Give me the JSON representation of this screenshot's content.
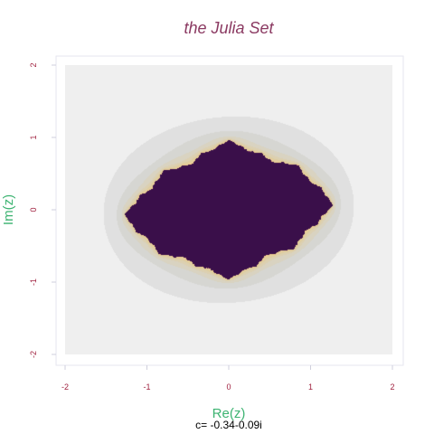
{
  "chart_data": {
    "type": "heatmap",
    "title": "the Julia Set",
    "xlabel": "Re(z)",
    "ylabel": "Im(z)",
    "caption": "c= -0.34-0.09i",
    "c": {
      "re": -0.34,
      "im": -0.09
    },
    "xlim": [
      -2,
      2
    ],
    "ylim": [
      -2,
      2
    ],
    "xticks": [
      "-2",
      "-1",
      "0",
      "1",
      "2"
    ],
    "yticks": [
      "-2",
      "-1",
      "0",
      "1",
      "2"
    ],
    "grid": false,
    "colors": {
      "title": "#8b3a62",
      "axis_label": "#3cb371",
      "tick": "#a0213f",
      "background": "#efefef",
      "fractal_dark": "#3a0f4a",
      "fractal_mid": "#a3306a",
      "fractal_light": "#ffd28a"
    }
  }
}
